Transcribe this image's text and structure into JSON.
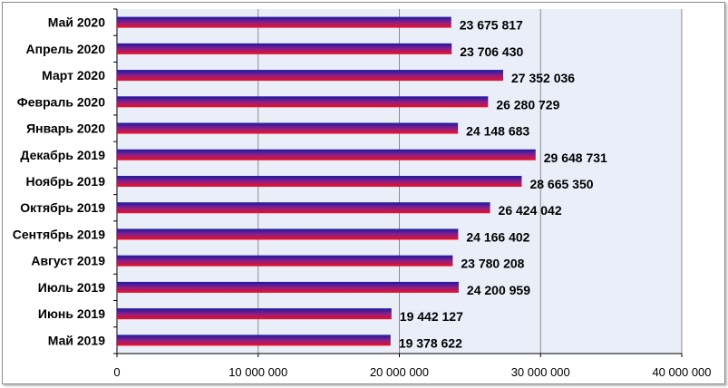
{
  "chart_data": {
    "type": "bar",
    "orientation": "horizontal",
    "categories": [
      "Май 2020",
      "Апрель 2020",
      "Март 2020",
      "Февраль 2020",
      "Январь 2020",
      "Декабрь 2019",
      "Ноябрь 2019",
      "Октябрь 2019",
      "Сентябрь 2019",
      "Август 2019",
      "Июль 2019",
      "Июнь 2019",
      "Май 2019"
    ],
    "values": [
      23675817,
      23706430,
      27352036,
      26280729,
      24148683,
      29648731,
      28665350,
      26424042,
      24166402,
      23780208,
      24200959,
      19442127,
      19378622
    ],
    "value_labels": [
      "23 675 817",
      "23 706 430",
      "27 352 036",
      "26 280 729",
      "24 148 683",
      "29 648 731",
      "28 665 350",
      "26 424 042",
      "24 166 402",
      "23 780 208",
      "24 200 959",
      "19 442 127",
      "19 378 622"
    ],
    "x_ticks": [
      "0",
      "10 000 000",
      "20 000 000",
      "30 000 000",
      "40 000 000"
    ],
    "xlim": [
      0,
      40000000
    ],
    "grid": true,
    "colors": {
      "plot_background": "#eaeef8",
      "gridline": "#8c8c8c",
      "bar_top": "#1a1aa0",
      "bar_middle": "#8a1e8a",
      "bar_bottom": "#ee1020"
    }
  }
}
